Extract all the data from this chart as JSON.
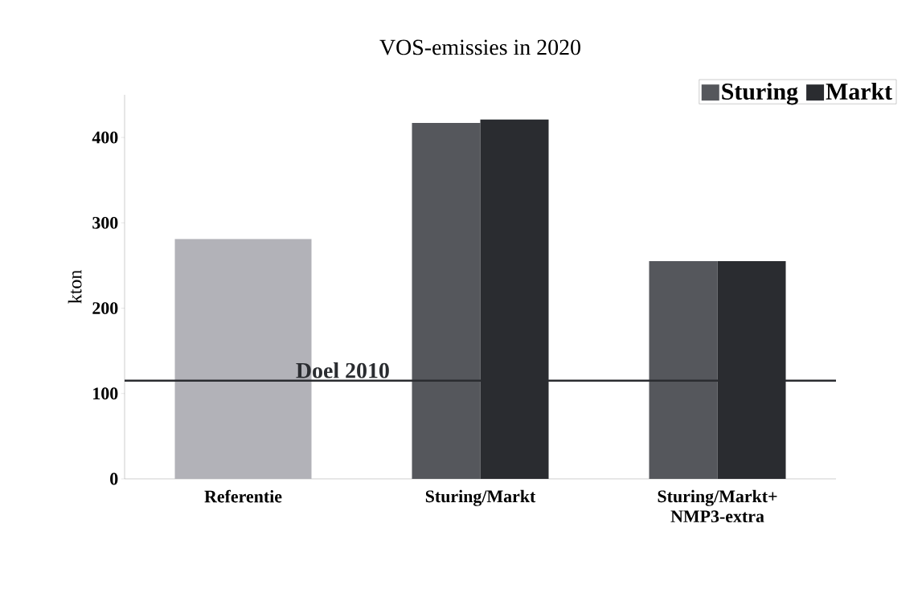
{
  "chart_data": {
    "type": "bar",
    "title": "VOS-emissies in 2020",
    "ylabel": "kton",
    "categories": [
      "Referentie",
      "Sturing/Markt",
      "Sturing/Markt+ NMP3-extra"
    ],
    "series": [
      {
        "color": "#b2b2b8",
        "values": [
          281,
          null,
          null
        ]
      },
      {
        "name": "Sturing",
        "color": "#55575c",
        "values": [
          null,
          417,
          255
        ]
      },
      {
        "name": "Markt",
        "color": "#2a2c30",
        "values": [
          null,
          421,
          255
        ]
      }
    ],
    "ylim": [
      0,
      450
    ],
    "yticks": [
      0,
      100,
      200,
      300,
      400
    ],
    "ref_lines": [
      {
        "axis": "y",
        "value": 115,
        "label": "Doel 2010",
        "color": "#2a2c30"
      }
    ],
    "grid": false,
    "legend": "top right"
  }
}
